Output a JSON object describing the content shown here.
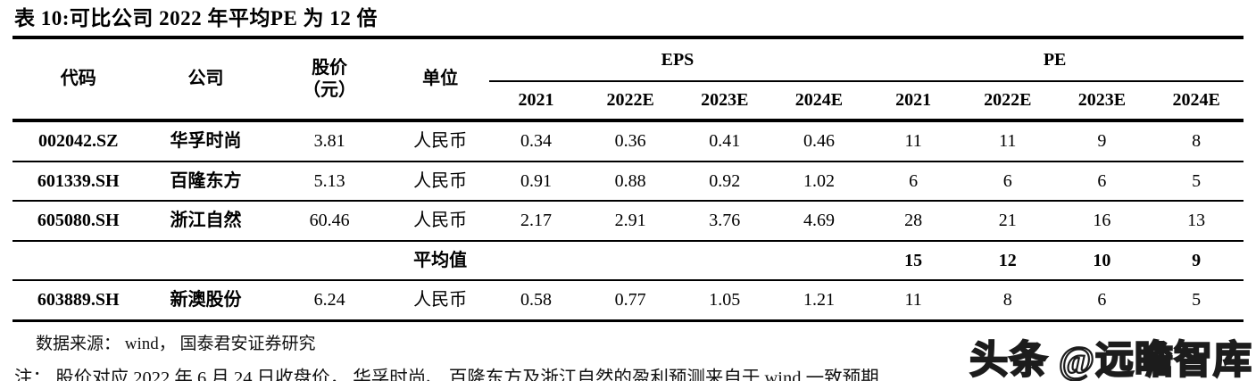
{
  "page": {
    "title": "表 10:可比公司 2022 年平均PE 为 12 倍"
  },
  "table": {
    "headers": {
      "code": "代码",
      "company": "公司",
      "price_line1": "股价",
      "price_line2": "（元）",
      "unit": "单位",
      "eps_group": "EPS",
      "pe_group": "PE",
      "eps_years": [
        "2021",
        "2022E",
        "2023E",
        "2024E"
      ],
      "pe_years": [
        "2021",
        "2022E",
        "2023E",
        "2024E"
      ]
    },
    "rows": [
      {
        "code": "002042.SZ",
        "company": "华孚时尚",
        "price": "3.81",
        "unit": "人民币",
        "eps": [
          "0.34",
          "0.36",
          "0.41",
          "0.46"
        ],
        "pe": [
          "11",
          "11",
          "9",
          "8"
        ],
        "bold": false
      },
      {
        "code": "601339.SH",
        "company": "百隆东方",
        "price": "5.13",
        "unit": "人民币",
        "eps": [
          "0.91",
          "0.88",
          "0.92",
          "1.02"
        ],
        "pe": [
          "6",
          "6",
          "6",
          "5"
        ],
        "bold": false
      },
      {
        "code": "605080.SH",
        "company": "浙江自然",
        "price": "60.46",
        "unit": "人民币",
        "eps": [
          "2.17",
          "2.91",
          "3.76",
          "4.69"
        ],
        "pe": [
          "28",
          "21",
          "16",
          "13"
        ],
        "bold": false
      },
      {
        "code": "",
        "company": "",
        "price": "",
        "unit": "平均值",
        "eps": [
          "",
          "",
          "",
          ""
        ],
        "pe": [
          "15",
          "12",
          "10",
          "9"
        ],
        "bold": true
      },
      {
        "code": "603889.SH",
        "company": "新澳股份",
        "price": "6.24",
        "unit": "人民币",
        "eps": [
          "0.58",
          "0.77",
          "1.05",
          "1.21"
        ],
        "pe": [
          "11",
          "8",
          "6",
          "5"
        ],
        "bold": false
      }
    ]
  },
  "footer": {
    "source": "数据来源： wind， 国泰君安证券研究",
    "note": "注： 股价对应 2022 年 6 月 24 日收盘价， 华孚时尚、 百隆东方及浙江自然的盈利预测来自于 wind 一致预期"
  },
  "watermark": {
    "text": "头条 @远瞻智库"
  }
}
